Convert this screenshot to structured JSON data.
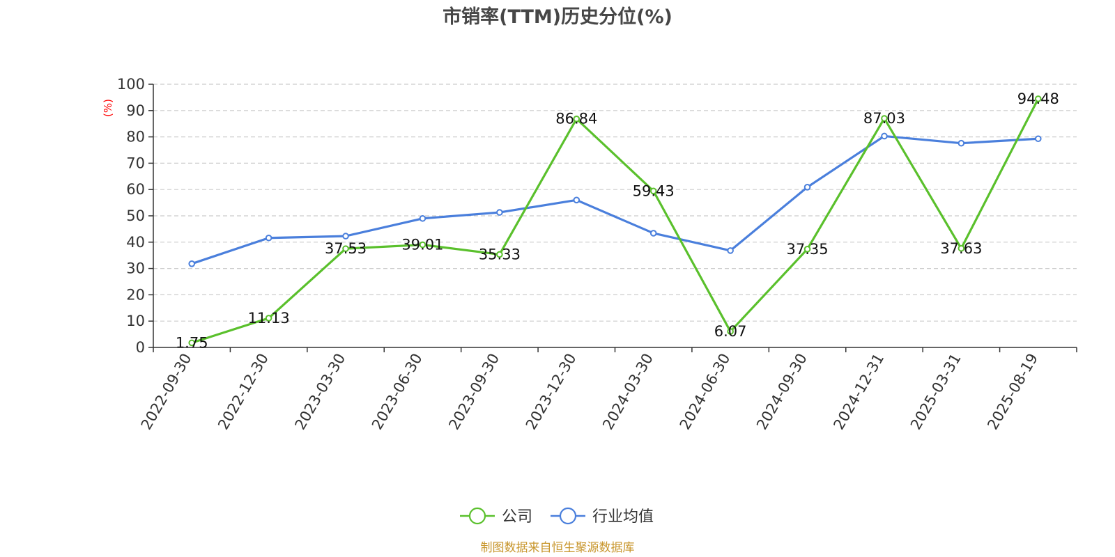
{
  "chart_data": {
    "type": "line",
    "title": "市销率(TTM)历史分位(%)",
    "ylabel": "(%)",
    "xlabel": "",
    "ylim": [
      0,
      100
    ],
    "yticks": [
      0,
      10,
      20,
      30,
      40,
      50,
      60,
      70,
      80,
      90,
      100
    ],
    "grid": true,
    "legend_position": "bottom",
    "categories": [
      "2022-09-30",
      "2022-12-30",
      "2023-03-30",
      "2023-06-30",
      "2023-09-30",
      "2023-12-30",
      "2024-03-30",
      "2024-06-30",
      "2024-09-30",
      "2024-12-31",
      "2025-03-31",
      "2025-08-19"
    ],
    "series": [
      {
        "name": "公司",
        "color": "#5ac02c",
        "values": [
          1.75,
          11.13,
          37.53,
          39.01,
          35.33,
          86.84,
          59.43,
          6.07,
          37.35,
          87.03,
          37.63,
          94.48
        ],
        "labels": [
          "1.75",
          "11.13",
          "37.53",
          "39.01",
          "35.33",
          "86.84",
          "59.43",
          "6.07",
          "37.35",
          "87.03",
          "37.63",
          "94.48"
        ]
      },
      {
        "name": "行业均值",
        "color": "#4a7fdc",
        "values": [
          31.8,
          41.6,
          42.3,
          49.0,
          51.3,
          56.0,
          43.4,
          36.8,
          60.9,
          80.3,
          77.6,
          79.3
        ]
      }
    ],
    "source": "制图数据来自恒生聚源数据库"
  }
}
